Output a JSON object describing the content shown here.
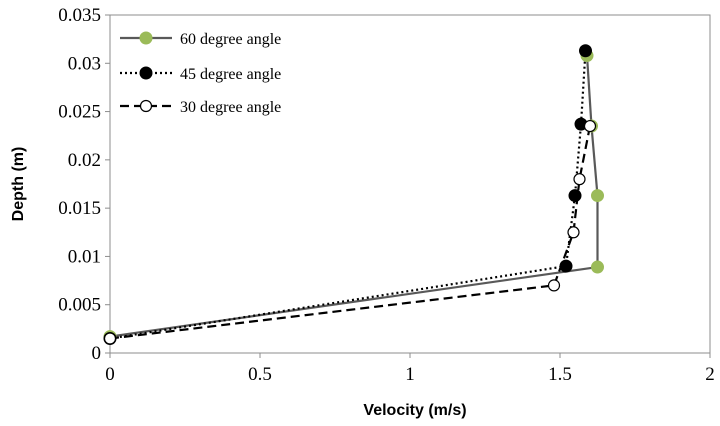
{
  "chart_data": {
    "type": "line",
    "title": "",
    "xlabel": "Velocity (m/s)",
    "ylabel": "Depth (m)",
    "xlim": [
      0,
      2
    ],
    "ylim": [
      0,
      0.035
    ],
    "x_ticks": [
      "0",
      "0.5",
      "1",
      "1.5",
      "2"
    ],
    "y_ticks": [
      "0",
      "0.005",
      "0.01",
      "0.015",
      "0.02",
      "0.025",
      "0.03",
      "0.035"
    ],
    "grid": false,
    "legend_position": "top-left",
    "series": [
      {
        "name": "60 degree angle",
        "line_style": "solid",
        "marker": "filled circle (light green)",
        "color": "#595959",
        "marker_color": "#9bbb59",
        "x": [
          0,
          1.625,
          1.625,
          1.605,
          1.59
        ],
        "y": [
          0.0017,
          0.0089,
          0.0163,
          0.0235,
          0.0308
        ]
      },
      {
        "name": "45 degree angle",
        "line_style": "dotted",
        "marker": "filled circle (black)",
        "color": "#000000",
        "marker_color": "#000000",
        "x": [
          0,
          1.52,
          1.55,
          1.57,
          1.585
        ],
        "y": [
          0.0015,
          0.009,
          0.0163,
          0.0237,
          0.0313
        ]
      },
      {
        "name": "30 degree angle",
        "line_style": "dashed",
        "marker": "open circle",
        "color": "#000000",
        "marker_color": "#ffffff",
        "x": [
          0,
          1.48,
          1.545,
          1.565,
          1.6
        ],
        "y": [
          0.0015,
          0.007,
          0.0125,
          0.018,
          0.0235
        ]
      }
    ]
  }
}
